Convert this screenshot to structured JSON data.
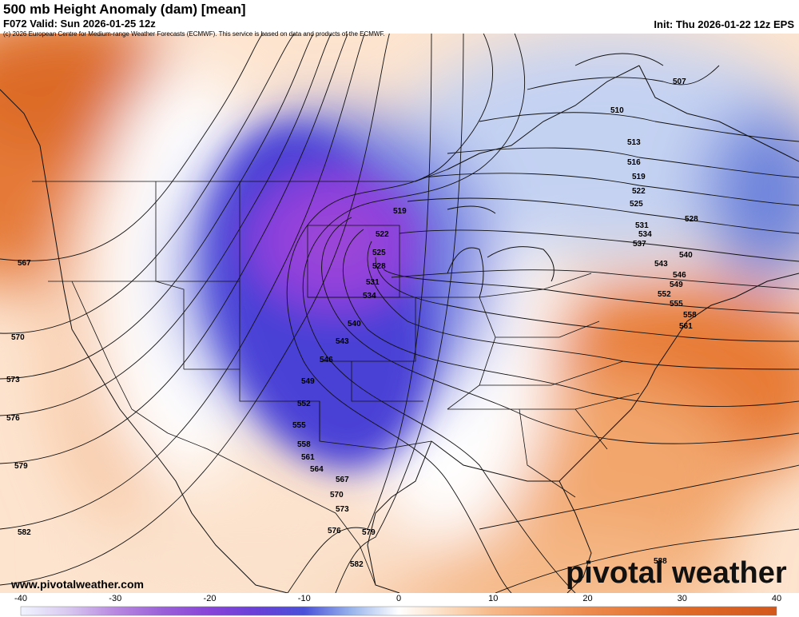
{
  "header": {
    "title": "500 mb Height Anomaly (dam) [mean]",
    "valid": "F072 Valid: Sun 2026-01-25 12z",
    "init": "Init: Thu 2026-01-22 12z EPS",
    "copyright": "(c) 2026 European Centre for Medium-range Weather Forecasts (ECMWF). This service is based on data and products of the ECMWF."
  },
  "footer": {
    "website": "www.pivotalweather.com",
    "brand": "pivotal weather"
  },
  "colorbar": {
    "min": -40,
    "max": 40,
    "labels": [
      "-40",
      "-30",
      "-20",
      "-10",
      "0",
      "10",
      "20",
      "30",
      "40"
    ],
    "colors": {
      "-40": "#f0f4ff",
      "-35": "#d8c8f0",
      "-30": "#b888e0",
      "-25": "#9a60d8",
      "-20": "#8844d8",
      "-15": "#6840d8",
      "-10": "#4a50d8",
      "-5": "#98b4ec",
      "0": "#ffffff",
      "5": "#fbdcc0",
      "10": "#f6b888",
      "20": "#ec8a4e",
      "30": "#e06a28",
      "40": "#d2581c"
    }
  },
  "contour_labels": {
    "left_edge": [
      "567",
      "570",
      "573",
      "576",
      "579",
      "582"
    ],
    "trough": [
      "519",
      "522",
      "525",
      "528",
      "531",
      "534",
      "540",
      "543",
      "546",
      "549",
      "552",
      "555",
      "558",
      "561",
      "564",
      "567",
      "570",
      "573",
      "576",
      "579",
      "582"
    ],
    "east": [
      "507",
      "510",
      "513",
      "516",
      "519",
      "522",
      "525",
      "528",
      "531",
      "534",
      "537",
      "543",
      "540",
      "546",
      "549",
      "552",
      "555",
      "558",
      "561",
      "588"
    ]
  }
}
